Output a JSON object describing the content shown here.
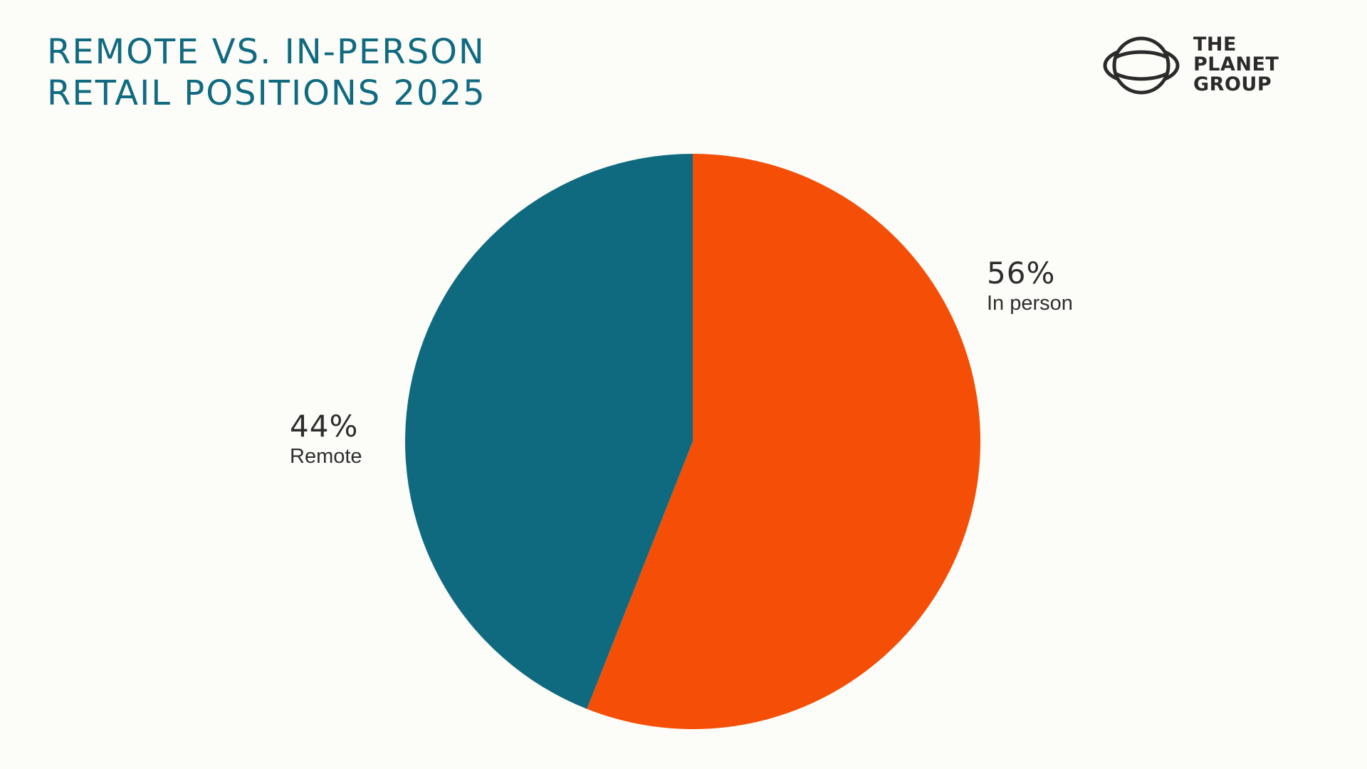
{
  "colors": {
    "background": "#fcfcf8",
    "title": "#106a80",
    "in_person": "#f44e07",
    "remote": "#0f6a80",
    "label_text": "#2e2e2e",
    "logo": "#2b2b2b"
  },
  "title_lines": [
    "REMOTE VS. IN-PERSON",
    "RETAIL POSITIONS 2025"
  ],
  "logo": {
    "icon": "planet-ring-logo-icon",
    "lines": [
      "THE",
      "PLANET",
      "GROUP"
    ]
  },
  "chart_data": {
    "type": "pie",
    "title": "REMOTE VS. IN-PERSON RETAIL POSITIONS 2025",
    "start_angle": "12 o'clock",
    "direction": "clockwise",
    "legend": "none",
    "slices": [
      {
        "label": "In person",
        "value": 56,
        "display": "56%",
        "color": "#f44e07"
      },
      {
        "label": "Remote",
        "value": 44,
        "display": "44%",
        "color": "#0f6a80"
      }
    ]
  }
}
